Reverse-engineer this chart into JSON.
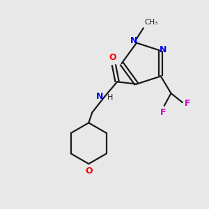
{
  "background_color": "#e8e8e8",
  "bond_color": "#1a1a1a",
  "atom_colors": {
    "N": "#0000ee",
    "O": "#ff0000",
    "F": "#cc00cc",
    "N_amide": "#008080",
    "C": "#1a1a1a"
  },
  "figsize": [
    3.0,
    3.0
  ],
  "dpi": 100
}
